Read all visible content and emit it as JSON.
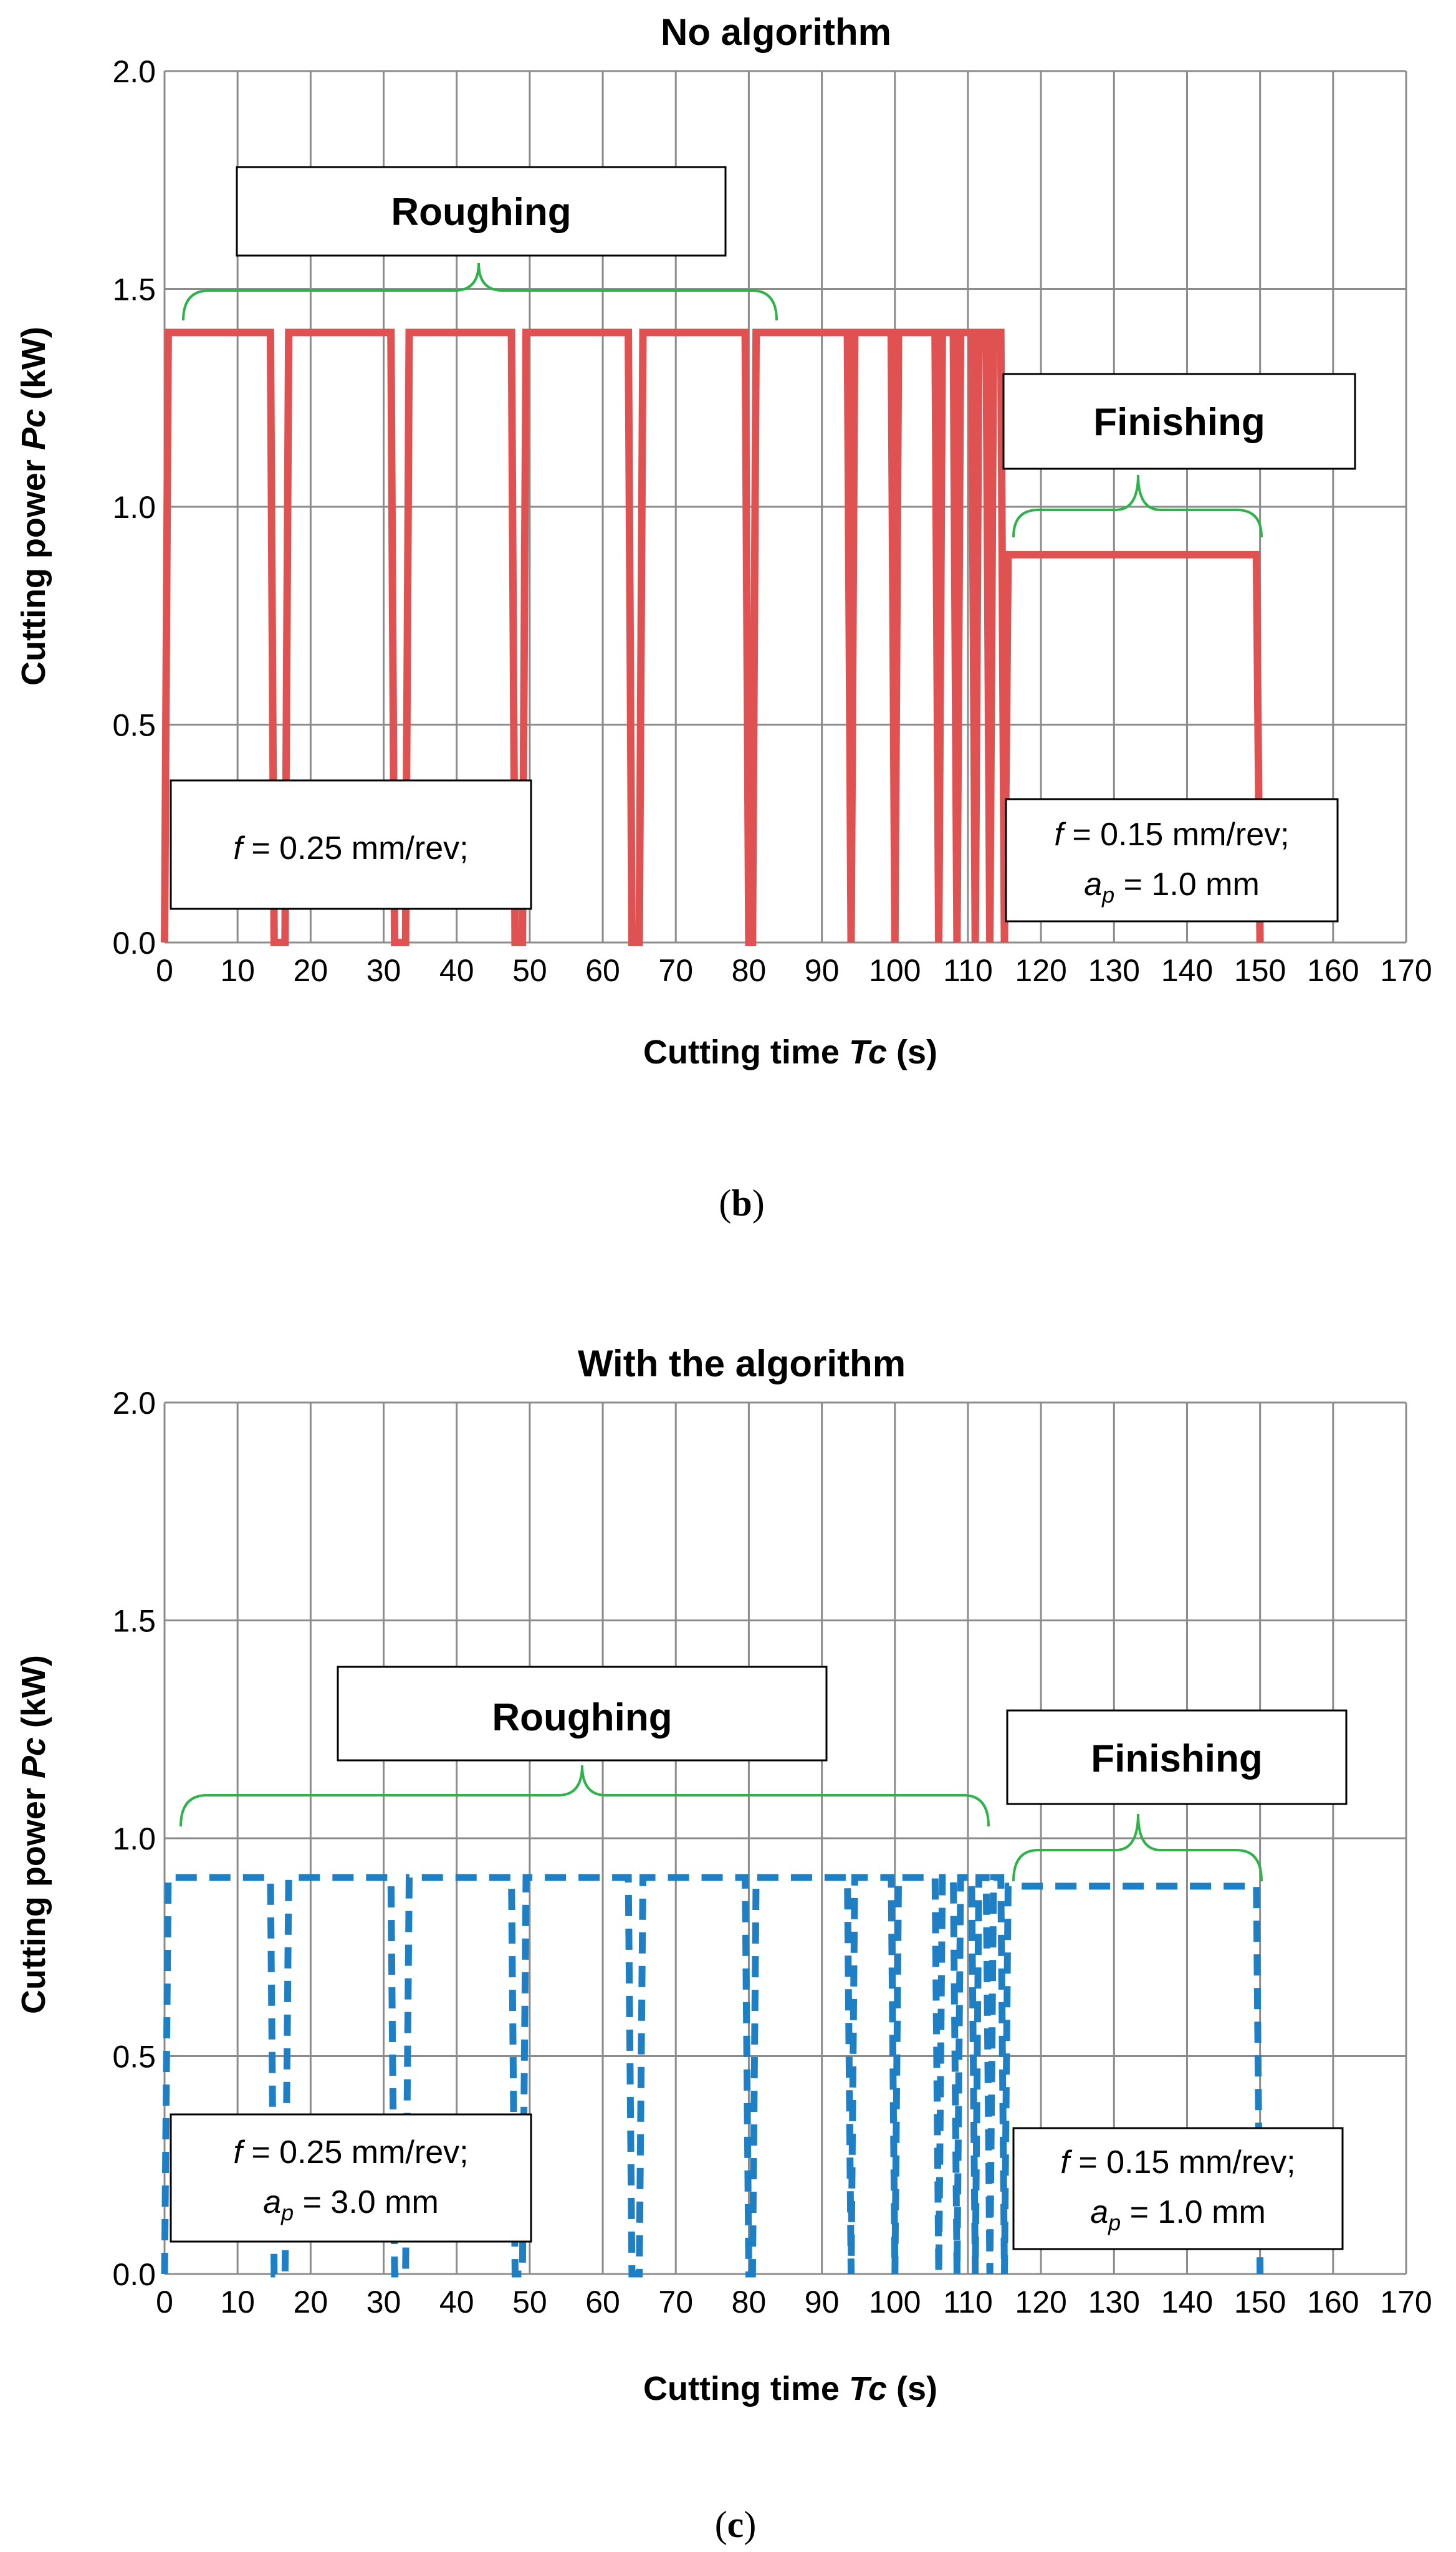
{
  "panel_labels": {
    "b": "b",
    "c": "c"
  },
  "chart_data": [
    {
      "id": "b",
      "type": "line",
      "title": "No algorithm",
      "xlabel": "Cutting time",
      "xlabel_var": "Tc",
      "xlabel_unit": "(s)",
      "ylabel": "Cutting power",
      "ylabel_var": "Pc",
      "ylabel_unit": "(kW)",
      "xlim": [
        0,
        170
      ],
      "ylim": [
        0,
        2
      ],
      "xticks": [
        "0",
        "10",
        "20",
        "30",
        "40",
        "50",
        "60",
        "70",
        "80",
        "90",
        "100",
        "110",
        "120",
        "130",
        "140",
        "150",
        "160",
        "170"
      ],
      "yticks": [
        "0.0",
        "0.5",
        "1.0",
        "1.5",
        "2.0"
      ],
      "grid": true,
      "series": [
        {
          "name": "Cutting power",
          "style": "solid",
          "color": "#E05252",
          "points": [
            [
              0,
              0
            ],
            [
              0.5,
              1.4
            ],
            [
              14.5,
              1.4
            ],
            [
              15,
              0
            ],
            [
              16.5,
              0
            ],
            [
              17,
              1.4
            ],
            [
              31,
              1.4
            ],
            [
              31.5,
              0
            ],
            [
              33,
              0
            ],
            [
              33.5,
              1.4
            ],
            [
              47.5,
              1.4
            ],
            [
              48,
              0
            ],
            [
              49,
              0
            ],
            [
              49.5,
              1.4
            ],
            [
              63.5,
              1.4
            ],
            [
              64,
              0
            ],
            [
              65,
              0
            ],
            [
              65.5,
              1.4
            ],
            [
              79.5,
              1.4
            ],
            [
              80,
              0
            ],
            [
              80.5,
              0
            ],
            [
              81,
              1.4
            ],
            [
              93.5,
              1.4
            ],
            [
              94,
              0
            ],
            [
              94.5,
              1.4
            ],
            [
              99.5,
              1.4
            ],
            [
              100,
              0
            ],
            [
              100.5,
              1.4
            ],
            [
              105.5,
              1.4
            ],
            [
              106,
              0
            ],
            [
              106.5,
              1.4
            ],
            [
              108,
              1.4
            ],
            [
              108.5,
              0
            ],
            [
              109,
              1.4
            ],
            [
              110.5,
              1.4
            ],
            [
              111,
              0
            ],
            [
              111.5,
              1.4
            ],
            [
              112.5,
              1.4
            ],
            [
              113,
              0
            ],
            [
              113.5,
              1.4
            ],
            [
              114.5,
              1.4
            ],
            [
              115,
              0
            ],
            [
              115.5,
              0.89
            ],
            [
              149.5,
              0.89
            ],
            [
              150,
              0
            ]
          ]
        }
      ],
      "annotations": {
        "roughing": "Roughing",
        "finishing": "Finishing",
        "left_note": {
          "f_label": "f",
          "f_text": " = 0.25 mm/rev;",
          "ap_label": "",
          "ap_sub": "",
          "ap_text": ""
        },
        "right_note": {
          "f_label": "f",
          "f_text": " = 0.15 mm/rev;",
          "ap_label": "a",
          "ap_sub": "p",
          "ap_text": " = 1.0 mm"
        }
      }
    },
    {
      "id": "c",
      "type": "line",
      "title": "With the algorithm",
      "xlabel": "Cutting time",
      "xlabel_var": "Tc",
      "xlabel_unit": "(s)",
      "ylabel": "Cutting power",
      "ylabel_var": "Pc",
      "ylabel_unit": "(kW)",
      "xlim": [
        0,
        170
      ],
      "ylim": [
        0,
        2
      ],
      "xticks": [
        "0",
        "10",
        "20",
        "30",
        "40",
        "50",
        "60",
        "70",
        "80",
        "90",
        "100",
        "110",
        "120",
        "130",
        "140",
        "150",
        "160",
        "170"
      ],
      "yticks": [
        "0.0",
        "0.5",
        "1.0",
        "1.5",
        "2.0"
      ],
      "grid": true,
      "series": [
        {
          "name": "Cutting power",
          "style": "dashed",
          "color": "#1F7FC4",
          "points": [
            [
              0,
              0
            ],
            [
              0.5,
              0.91
            ],
            [
              14.5,
              0.91
            ],
            [
              15,
              0
            ],
            [
              16.5,
              0
            ],
            [
              17,
              0.91
            ],
            [
              31,
              0.91
            ],
            [
              31.5,
              0
            ],
            [
              33,
              0
            ],
            [
              33.5,
              0.91
            ],
            [
              47.5,
              0.91
            ],
            [
              48,
              0
            ],
            [
              49,
              0
            ],
            [
              49.5,
              0.91
            ],
            [
              63.5,
              0.91
            ],
            [
              64,
              0
            ],
            [
              65,
              0
            ],
            [
              65.5,
              0.91
            ],
            [
              79.5,
              0.91
            ],
            [
              80,
              0
            ],
            [
              80.5,
              0
            ],
            [
              81,
              0.91
            ],
            [
              93.5,
              0.91
            ],
            [
              94,
              0
            ],
            [
              94.5,
              0.91
            ],
            [
              99.5,
              0.91
            ],
            [
              100,
              0
            ],
            [
              100.5,
              0.91
            ],
            [
              105.5,
              0.91
            ],
            [
              106,
              0
            ],
            [
              106.5,
              0.91
            ],
            [
              108,
              0.91
            ],
            [
              108.5,
              0
            ],
            [
              109,
              0.91
            ],
            [
              110.5,
              0.91
            ],
            [
              111,
              0
            ],
            [
              111.5,
              0.91
            ],
            [
              112.5,
              0.91
            ],
            [
              113,
              0
            ],
            [
              113.5,
              0.91
            ],
            [
              114.5,
              0.91
            ],
            [
              115,
              0
            ],
            [
              115.5,
              0.89
            ],
            [
              149.5,
              0.89
            ],
            [
              150,
              0
            ]
          ]
        }
      ],
      "annotations": {
        "roughing": "Roughing",
        "finishing": "Finishing",
        "left_note": {
          "f_label": "f",
          "f_text": " = 0.25 mm/rev;",
          "ap_label": "a",
          "ap_sub": "p",
          "ap_text": " = 3.0 mm"
        },
        "right_note": {
          "f_label": "f",
          "f_text": " = 0.15 mm/rev;",
          "ap_label": "a",
          "ap_sub": "p",
          "ap_text": " = 1.0 mm"
        }
      }
    }
  ]
}
